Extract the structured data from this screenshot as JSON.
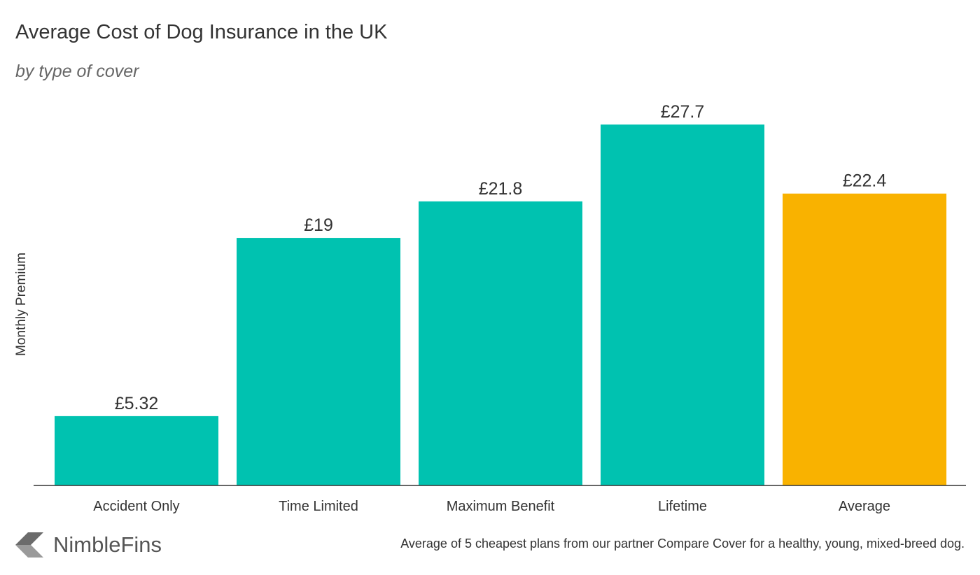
{
  "header": {
    "title": "Average Cost of Dog Insurance in the UK",
    "subtitle": "by type of cover"
  },
  "brand": {
    "name": "NimbleFins",
    "logo_icon": "nimblefins-chevron-logo-icon"
  },
  "footnote": "Average of 5 cheapest plans from our partner Compare Cover for a healthy, young, mixed-breed dog.",
  "colors": {
    "primary_bar": "#00c2b0",
    "highlight_bar": "#f9b200",
    "axis": "#333333",
    "text": "#333333"
  },
  "chart_data": {
    "type": "bar",
    "title": "Average Cost of Dog Insurance in the UK",
    "subtitle": "by type of cover",
    "xlabel": "",
    "ylabel": "Monthly Premium",
    "categories": [
      "Accident Only",
      "Time Limited",
      "Maximum Benefit",
      "Lifetime",
      "Average"
    ],
    "values": [
      5.32,
      19,
      21.8,
      27.7,
      22.4
    ],
    "value_labels": [
      "£5.32",
      "£19",
      "£21.8",
      "£27.7",
      "£22.4"
    ],
    "highlight_category": "Average",
    "ylim": [
      0,
      30
    ],
    "grid": false,
    "legend": "none"
  }
}
